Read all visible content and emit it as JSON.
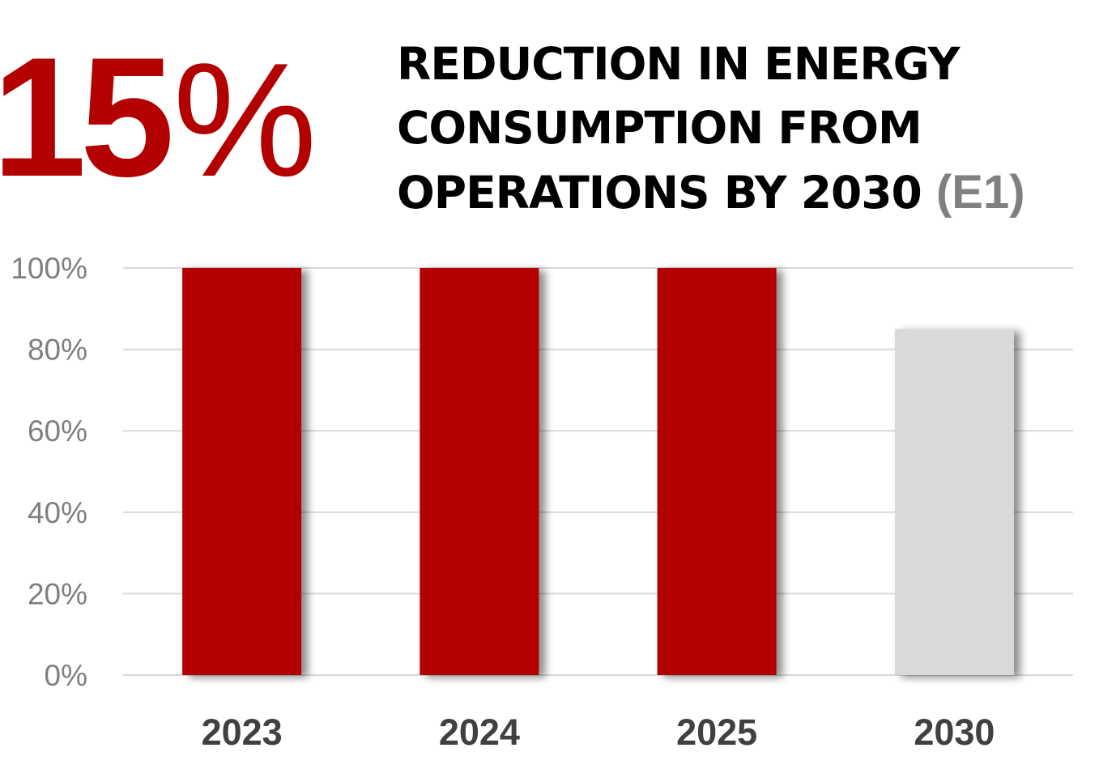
{
  "headline": {
    "value": "15",
    "symbol": "%"
  },
  "subtitle": {
    "lines": [
      "REDUCTION IN ENERGY",
      "CONSUMPTION FROM",
      "OPERATIONS BY 2030"
    ],
    "tag": "(E1)"
  },
  "colors": {
    "accent": "#b30000",
    "target": "#d9d9d9",
    "tag": "#808080",
    "axis_text": "#7f7f7f",
    "category_text": "#404040",
    "gridline": "#d9d9d9"
  },
  "chart_data": {
    "type": "bar",
    "categories": [
      "2023",
      "2024",
      "2025",
      "2030"
    ],
    "values": [
      100,
      100,
      100,
      85
    ],
    "bar_colors": [
      "#b30000",
      "#b30000",
      "#b30000",
      "#d9d9d9"
    ],
    "yticks": [
      "0%",
      "20%",
      "40%",
      "60%",
      "80%",
      "100%"
    ],
    "ylim": [
      0,
      100
    ],
    "grid": true,
    "legend": "none"
  }
}
